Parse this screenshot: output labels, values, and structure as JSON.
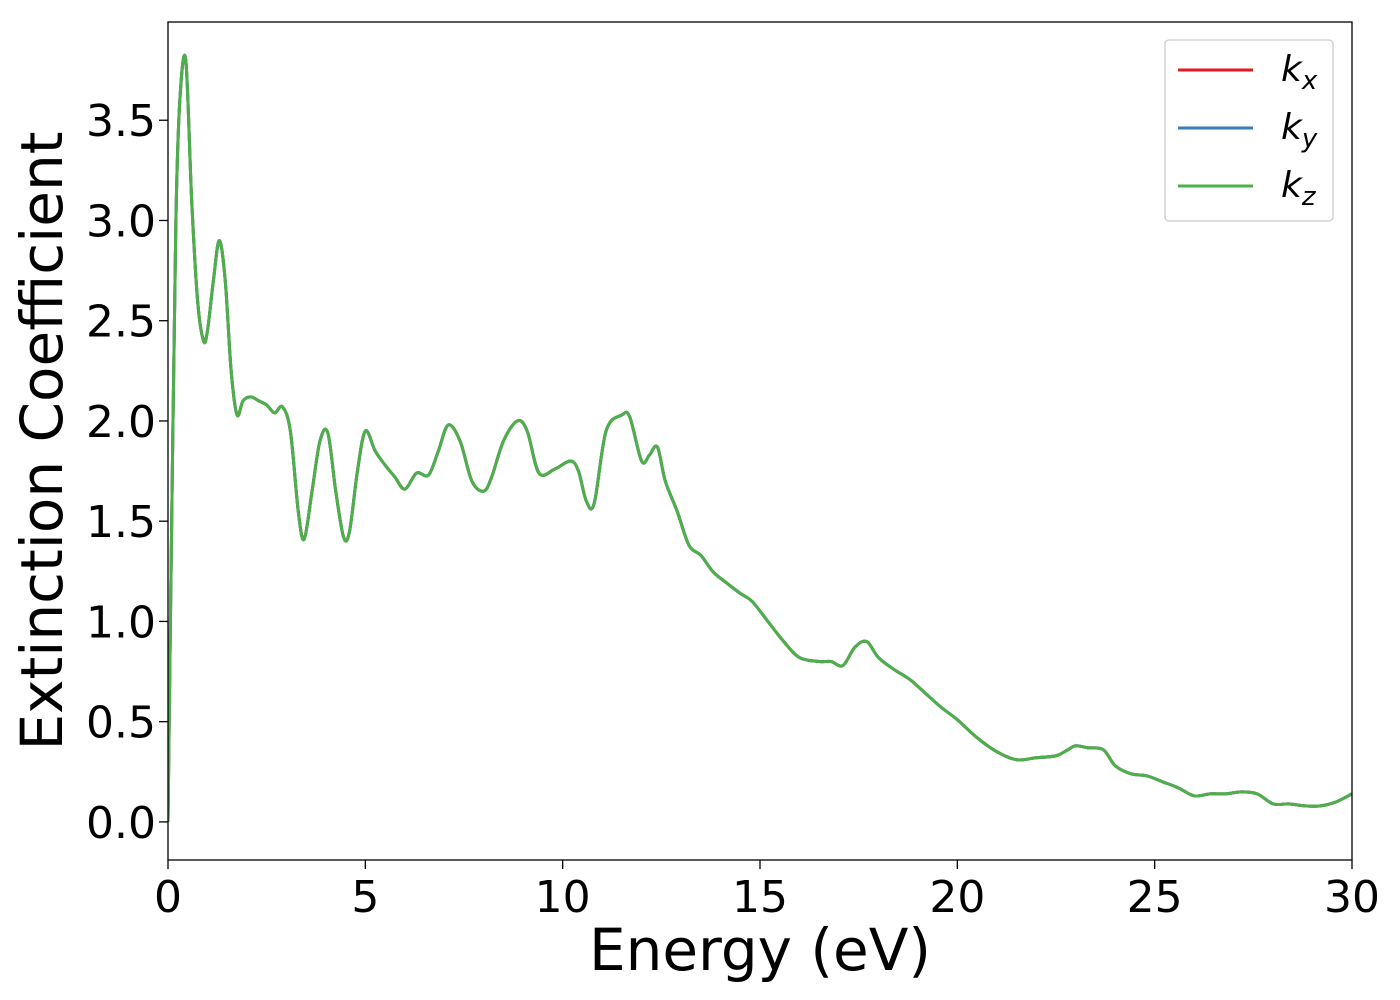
{
  "chart_data": {
    "type": "line",
    "title": "",
    "xlabel": "Energy (eV)",
    "ylabel": "Extinction Coefficient",
    "xlim": [
      0,
      30
    ],
    "ylim": [
      -0.19,
      3.99
    ],
    "xticks": [
      0,
      5,
      10,
      15,
      20,
      25,
      30
    ],
    "xtick_labels": [
      "0",
      "5",
      "10",
      "15",
      "20",
      "25",
      "30"
    ],
    "yticks": [
      0.0,
      0.5,
      1.0,
      1.5,
      2.0,
      2.5,
      3.0,
      3.5
    ],
    "ytick_labels": [
      "0.0",
      "0.5",
      "1.0",
      "1.5",
      "2.0",
      "2.5",
      "3.0",
      "3.5"
    ],
    "grid": false,
    "legend_position": "top-right",
    "series": [
      {
        "name": "k",
        "subscript": "x",
        "color": "#e41a1c",
        "shares_data_with": "k_z"
      },
      {
        "name": "k",
        "subscript": "y",
        "color": "#377eb8",
        "shares_data_with": "k_z"
      },
      {
        "name": "k",
        "subscript": "z",
        "color": "#4daf4a"
      }
    ],
    "x": [
      0,
      0.1,
      0.2,
      0.3,
      0.45,
      0.6,
      0.75,
      0.9,
      1.0,
      1.15,
      1.3,
      1.45,
      1.6,
      1.75,
      1.9,
      2.1,
      2.3,
      2.5,
      2.7,
      2.9,
      3.1,
      3.3,
      3.45,
      3.65,
      3.85,
      4.05,
      4.25,
      4.45,
      4.6,
      4.8,
      5.0,
      5.25,
      5.5,
      5.75,
      6.0,
      6.3,
      6.6,
      6.85,
      7.1,
      7.4,
      7.7,
      8.0,
      8.2,
      8.5,
      8.85,
      9.1,
      9.4,
      9.8,
      10.2,
      10.4,
      10.6,
      10.8,
      11.1,
      11.5,
      11.7,
      12.0,
      12.2,
      12.4,
      12.6,
      12.9,
      13.2,
      13.5,
      13.8,
      14.1,
      14.5,
      14.8,
      15.2,
      15.6,
      16.0,
      16.5,
      16.8,
      17.1,
      17.4,
      17.7,
      18.0,
      18.4,
      18.8,
      19.2,
      19.6,
      20.0,
      20.5,
      21.0,
      21.5,
      22.0,
      22.5,
      22.8,
      23.0,
      23.3,
      23.7,
      24.0,
      24.4,
      24.8,
      25.2,
      25.6,
      26.0,
      26.4,
      26.8,
      27.2,
      27.6,
      28.0,
      28.4,
      28.8,
      29.2,
      29.6,
      30.0
    ],
    "y": [
      0.0,
      1.6,
      3.0,
      3.6,
      3.8,
      3.1,
      2.6,
      2.4,
      2.45,
      2.7,
      2.9,
      2.7,
      2.25,
      2.03,
      2.1,
      2.12,
      2.1,
      2.08,
      2.04,
      2.07,
      1.95,
      1.55,
      1.41,
      1.65,
      1.9,
      1.94,
      1.65,
      1.42,
      1.45,
      1.75,
      1.95,
      1.85,
      1.78,
      1.72,
      1.66,
      1.74,
      1.73,
      1.85,
      1.98,
      1.9,
      1.7,
      1.65,
      1.72,
      1.9,
      2.0,
      1.95,
      1.74,
      1.76,
      1.8,
      1.75,
      1.6,
      1.59,
      1.95,
      2.03,
      2.02,
      1.8,
      1.83,
      1.87,
      1.7,
      1.55,
      1.38,
      1.33,
      1.25,
      1.2,
      1.14,
      1.1,
      1.0,
      0.9,
      0.82,
      0.8,
      0.8,
      0.78,
      0.87,
      0.9,
      0.82,
      0.76,
      0.71,
      0.64,
      0.57,
      0.51,
      0.42,
      0.35,
      0.31,
      0.32,
      0.33,
      0.36,
      0.38,
      0.37,
      0.36,
      0.28,
      0.24,
      0.23,
      0.2,
      0.17,
      0.13,
      0.14,
      0.14,
      0.15,
      0.14,
      0.09,
      0.09,
      0.08,
      0.08,
      0.1,
      0.14
    ]
  }
}
